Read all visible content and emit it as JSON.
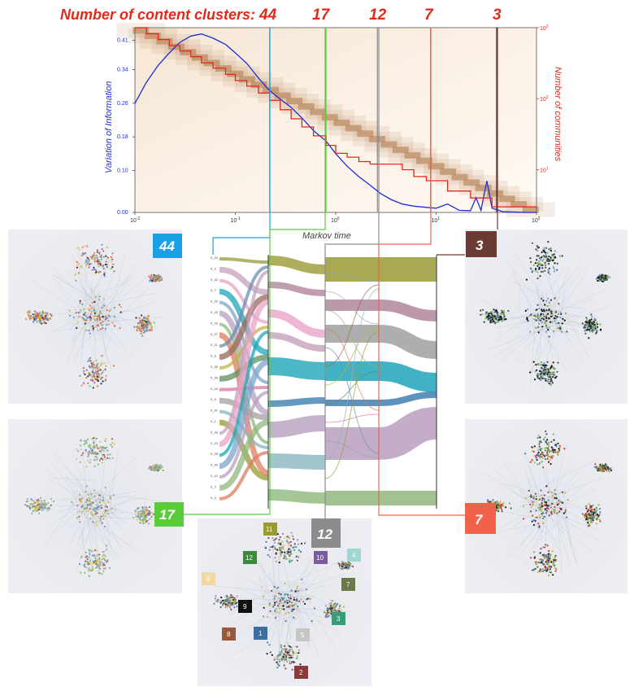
{
  "header": {
    "title": "Number of content clusters:",
    "cluster_counts": [
      "44",
      "17",
      "12",
      "7",
      "3"
    ]
  },
  "colors": {
    "red": "#e02a1c",
    "blue": "#1c2fd6",
    "badge_44": "#1aa0e6",
    "badge_17": "#5acc3a",
    "badge_12": "#8c8c8c",
    "badge_7": "#f2624a",
    "badge_3": "#6b3a34",
    "heatmap": "#b9865a"
  },
  "chart_data": {
    "type": "line",
    "xlabel": "Markov time",
    "ylabel_left": "Variation of Information",
    "ylabel_right": "Number of communities",
    "x_scale": "log",
    "xlim": [
      0.01,
      100
    ],
    "x_ticks": [
      {
        "value": 0.01,
        "base": "10",
        "exp": "-2"
      },
      {
        "value": 0.1,
        "base": "10",
        "exp": "-1"
      },
      {
        "value": 1,
        "base": "10",
        "exp": "0"
      },
      {
        "value": 10,
        "base": "10",
        "exp": "1"
      },
      {
        "value": 100,
        "base": "10",
        "exp": "2"
      }
    ],
    "ylim_left": [
      0,
      0.44
    ],
    "y_ticks_left": [
      "0.00",
      "0.10",
      "0.18",
      "0.26",
      "0.34",
      "0.41"
    ],
    "y_tick_values_left": [
      0.0,
      0.1,
      0.18,
      0.26,
      0.34,
      0.41
    ],
    "y_scale_right": "log",
    "ylim_right": [
      2.5,
      1000
    ],
    "y_ticks_right": [
      {
        "value": 10,
        "base": "10",
        "exp": "1"
      },
      {
        "value": 100,
        "base": "10",
        "exp": "2"
      },
      {
        "value": 1000,
        "base": "10",
        "exp": "3"
      }
    ],
    "background": "heatmap (diagonal band)",
    "series": [
      {
        "label": "variation of information",
        "color": "#1c2fd6",
        "axis": "left",
        "x": [
          0.01,
          0.013,
          0.017,
          0.022,
          0.028,
          0.036,
          0.046,
          0.06,
          0.08,
          0.1,
          0.13,
          0.17,
          0.22,
          0.28,
          0.36,
          0.46,
          0.6,
          0.8,
          1.0,
          1.3,
          1.7,
          2.2,
          2.8,
          3.6,
          4.6,
          6,
          8,
          10,
          13,
          17,
          22,
          25,
          28,
          32,
          36,
          46,
          60,
          80,
          100
        ],
        "y": [
          0.26,
          0.31,
          0.35,
          0.38,
          0.405,
          0.42,
          0.425,
          0.415,
          0.4,
          0.38,
          0.355,
          0.32,
          0.29,
          0.27,
          0.25,
          0.225,
          0.195,
          0.17,
          0.14,
          0.11,
          0.085,
          0.065,
          0.045,
          0.03,
          0.02,
          0.015,
          0.012,
          0.01,
          0.02,
          0.005,
          0.004,
          0.035,
          0.005,
          0.075,
          0.01,
          0.002,
          0.001,
          0.0,
          0.0
        ]
      },
      {
        "label": "number of communities",
        "color": "#e02a1c",
        "axis": "right",
        "x": [
          0.01,
          0.013,
          0.017,
          0.022,
          0.028,
          0.036,
          0.046,
          0.06,
          0.08,
          0.1,
          0.13,
          0.17,
          0.22,
          0.28,
          0.36,
          0.46,
          0.6,
          0.8,
          1.0,
          1.3,
          1.7,
          2.2,
          2.8,
          3.6,
          4.6,
          6,
          8,
          10,
          13,
          17,
          22,
          28,
          36,
          46,
          60,
          80,
          100
        ],
        "y": [
          1000,
          820,
          680,
          560,
          470,
          390,
          320,
          270,
          220,
          180,
          150,
          120,
          95,
          70,
          52,
          40,
          30,
          22,
          17,
          15,
          13,
          12,
          12,
          12,
          10,
          8,
          7,
          7,
          5,
          5,
          4,
          4,
          3,
          3,
          3,
          3,
          3
        ]
      }
    ],
    "markers": [
      {
        "label": "44",
        "x": 0.22
      },
      {
        "label": "17",
        "x": 0.8
      },
      {
        "label": "12",
        "x": 2.6
      },
      {
        "label": "7",
        "x": 8.8
      },
      {
        "label": "3",
        "x": 40
      }
    ]
  },
  "badges": {
    "b44": "44",
    "b17": "17",
    "b12": "12",
    "b7": "7",
    "b3": "3"
  },
  "cluster_labels": [
    "11",
    "10",
    "4",
    "12",
    "7",
    "6",
    "9",
    "3",
    "8",
    "1",
    "5",
    "2"
  ],
  "sankey_column_labels": [
    "0_24",
    "0_3",
    "0_42",
    "0_7",
    "0_20",
    "0_23",
    "0_16",
    "0_17",
    "0_11",
    "0_6",
    "0_33",
    "0_26",
    "0_44",
    "0_5",
    "0_41",
    "0_1",
    "0_18",
    "0_13",
    "0_29",
    "0_40",
    "0_12",
    "0_2",
    "0_4"
  ]
}
